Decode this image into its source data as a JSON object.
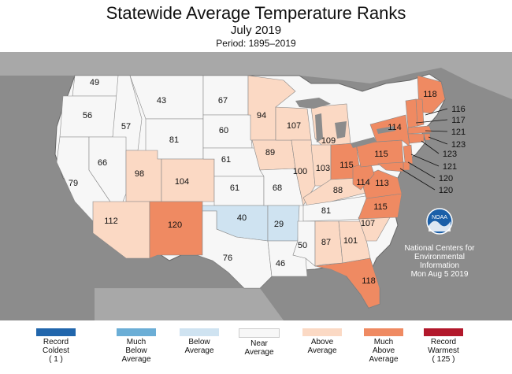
{
  "header": {
    "title": "Statewide Average Temperature Ranks",
    "subtitle": "July 2019",
    "period": "Period: 1895–2019"
  },
  "agency": {
    "logo_text": "NOAA",
    "line1": "National Centers for",
    "line2": "Environmental",
    "line3": "Information",
    "date": "Mon Aug  5 2019"
  },
  "colors": {
    "record_coldest": "#2166ac",
    "much_below": "#6baed6",
    "below": "#cfe3f1",
    "near": "#f7f7f7",
    "above": "#fbd9c4",
    "much_above": "#ef8a62",
    "record_warmest": "#b2182b",
    "background": "#8c8c8c"
  },
  "legend": [
    {
      "label": "Record\nColdest\n( 1 )",
      "color": "#2166ac"
    },
    {
      "label": "Much\nBelow\nAverage",
      "color": "#6baed6"
    },
    {
      "label": "Below\nAverage",
      "color": "#cfe3f1"
    },
    {
      "label": "Near\nAverage",
      "color": "#f7f7f7"
    },
    {
      "label": "Above\nAverage",
      "color": "#fbd9c4"
    },
    {
      "label": "Much\nAbove\nAverage",
      "color": "#ef8a62"
    },
    {
      "label": "Record\nWarmest\n( 125 )",
      "color": "#b2182b"
    }
  ],
  "states": [
    {
      "state": "WA",
      "rank": 49,
      "category": "near"
    },
    {
      "state": "OR",
      "rank": 56,
      "category": "near"
    },
    {
      "state": "CA",
      "rank": 79,
      "category": "near"
    },
    {
      "state": "ID",
      "rank": 57,
      "category": "near"
    },
    {
      "state": "NV",
      "rank": 66,
      "category": "near"
    },
    {
      "state": "MT",
      "rank": 43,
      "category": "near"
    },
    {
      "state": "WY",
      "rank": 81,
      "category": "near"
    },
    {
      "state": "UT",
      "rank": 98,
      "category": "above"
    },
    {
      "state": "AZ",
      "rank": 112,
      "category": "above"
    },
    {
      "state": "CO",
      "rank": 104,
      "category": "above"
    },
    {
      "state": "NM",
      "rank": 120,
      "category": "much_above"
    },
    {
      "state": "ND",
      "rank": 67,
      "category": "near"
    },
    {
      "state": "SD",
      "rank": 60,
      "category": "near"
    },
    {
      "state": "NE",
      "rank": 61,
      "category": "near"
    },
    {
      "state": "KS",
      "rank": 61,
      "category": "near"
    },
    {
      "state": "OK",
      "rank": 40,
      "category": "below"
    },
    {
      "state": "TX",
      "rank": 76,
      "category": "near"
    },
    {
      "state": "MN",
      "rank": 94,
      "category": "above"
    },
    {
      "state": "IA",
      "rank": 89,
      "category": "above"
    },
    {
      "state": "MO",
      "rank": 68,
      "category": "near"
    },
    {
      "state": "AR",
      "rank": 29,
      "category": "below"
    },
    {
      "state": "LA",
      "rank": 46,
      "category": "near"
    },
    {
      "state": "WI",
      "rank": 107,
      "category": "above"
    },
    {
      "state": "IL",
      "rank": 100,
      "category": "above"
    },
    {
      "state": "MI",
      "rank": 109,
      "category": "above"
    },
    {
      "state": "IN",
      "rank": 103,
      "category": "above"
    },
    {
      "state": "OH",
      "rank": 115,
      "category": "much_above"
    },
    {
      "state": "KY",
      "rank": 88,
      "category": "above"
    },
    {
      "state": "TN",
      "rank": 81,
      "category": "near"
    },
    {
      "state": "MS",
      "rank": 50,
      "category": "near"
    },
    {
      "state": "AL",
      "rank": 87,
      "category": "above"
    },
    {
      "state": "GA",
      "rank": 101,
      "category": "above"
    },
    {
      "state": "FL",
      "rank": 118,
      "category": "much_above"
    },
    {
      "state": "SC",
      "rank": 107,
      "category": "above"
    },
    {
      "state": "NC",
      "rank": 115,
      "category": "much_above"
    },
    {
      "state": "VA",
      "rank": 113,
      "category": "much_above"
    },
    {
      "state": "WV",
      "rank": 114,
      "category": "much_above"
    },
    {
      "state": "PA",
      "rank": 115,
      "category": "much_above"
    },
    {
      "state": "NY",
      "rank": 114,
      "category": "much_above"
    },
    {
      "state": "ME",
      "rank": 118,
      "category": "much_above"
    },
    {
      "state": "NH",
      "rank": 116,
      "category": "much_above"
    },
    {
      "state": "VT",
      "rank": 117,
      "category": "much_above"
    },
    {
      "state": "MA",
      "rank": 121,
      "category": "much_above"
    },
    {
      "state": "RI",
      "rank": 123,
      "category": "much_above"
    },
    {
      "state": "CT",
      "rank": 123,
      "category": "much_above"
    },
    {
      "state": "NJ",
      "rank": 121,
      "category": "much_above"
    },
    {
      "state": "DE",
      "rank": 120,
      "category": "much_above"
    },
    {
      "state": "MD",
      "rank": 120,
      "category": "much_above"
    }
  ]
}
